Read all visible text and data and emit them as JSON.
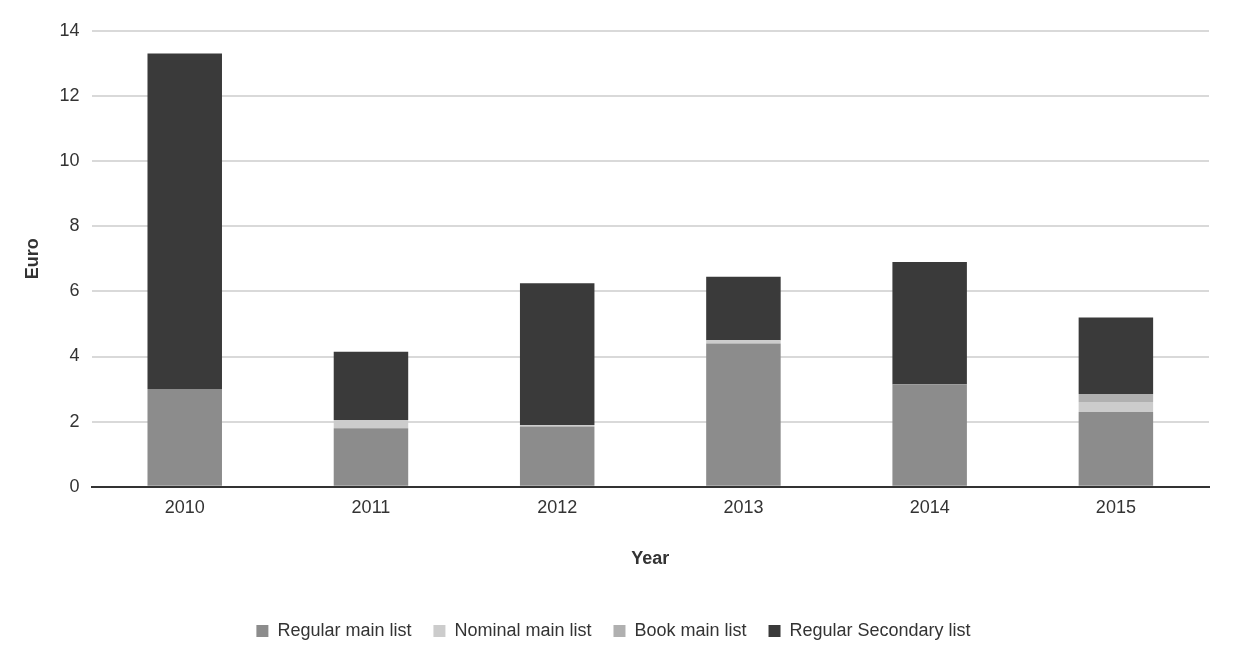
{
  "chart_data": {
    "type": "bar",
    "stacked": true,
    "xlabel": "Year",
    "ylabel": "Euro",
    "categories": [
      "2010",
      "2011",
      "2012",
      "2013",
      "2014",
      "2015"
    ],
    "series": [
      {
        "name": "Regular main list",
        "color": "#8c8c8c",
        "values": [
          3.0,
          1.8,
          1.85,
          4.4,
          3.15,
          2.3
        ]
      },
      {
        "name": "Nominal main list",
        "color": "#cccccc",
        "values": [
          0,
          0.25,
          0.05,
          0.1,
          0,
          0.3
        ]
      },
      {
        "name": "Book main list",
        "color": "#b0b0b0",
        "values": [
          0,
          0,
          0,
          0,
          0,
          0.25
        ]
      },
      {
        "name": "Regular Secondary list",
        "color": "#3a3a3a",
        "values": [
          10.3,
          2.1,
          4.35,
          1.95,
          3.75,
          2.35
        ]
      }
    ],
    "ylim": [
      0,
      14
    ],
    "yticks": [
      0,
      2,
      4,
      6,
      8,
      10,
      12,
      14
    ],
    "grid": "y",
    "legend": "bottom"
  }
}
